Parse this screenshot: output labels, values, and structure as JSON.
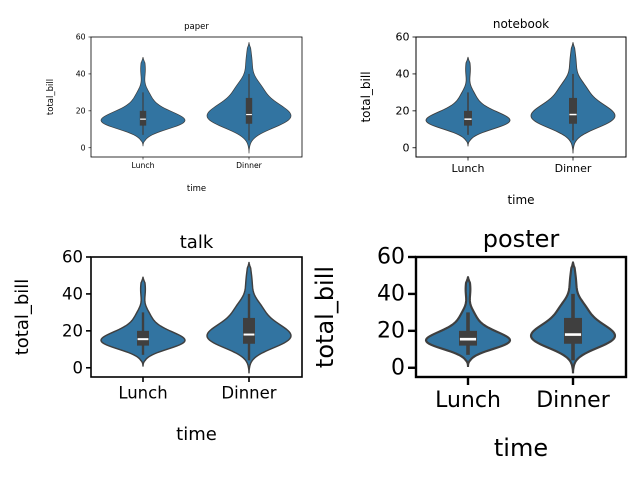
{
  "chart_data": [
    {
      "type": "violin",
      "title": "paper",
      "xlabel": "time",
      "ylabel": "total_bill",
      "categories": [
        "Lunch",
        "Dinner"
      ],
      "ylim": [
        -5,
        60
      ],
      "yticks": [
        0,
        20,
        40,
        60
      ],
      "color": "#3274a1",
      "violins": [
        {
          "category": "Lunch",
          "min": 1,
          "max": 49,
          "q1": 12,
          "median": 15.5,
          "q3": 20,
          "whisker_low": 7,
          "whisker_high": 30
        },
        {
          "category": "Dinner",
          "min": -3,
          "max": 57,
          "q1": 13,
          "median": 18,
          "q3": 27,
          "whisker_low": 4,
          "whisker_high": 40
        }
      ]
    },
    {
      "type": "violin",
      "title": "notebook",
      "xlabel": "time",
      "ylabel": "total_bill",
      "categories": [
        "Lunch",
        "Dinner"
      ],
      "ylim": [
        -5,
        60
      ],
      "yticks": [
        0,
        20,
        40,
        60
      ],
      "color": "#3274a1",
      "violins": [
        {
          "category": "Lunch",
          "min": 1,
          "max": 49,
          "q1": 12,
          "median": 15.5,
          "q3": 20,
          "whisker_low": 7,
          "whisker_high": 30
        },
        {
          "category": "Dinner",
          "min": -3,
          "max": 57,
          "q1": 13,
          "median": 18,
          "q3": 27,
          "whisker_low": 4,
          "whisker_high": 40
        }
      ]
    },
    {
      "type": "violin",
      "title": "talk",
      "xlabel": "time",
      "ylabel": "total_bill",
      "categories": [
        "Lunch",
        "Dinner"
      ],
      "ylim": [
        -5,
        60
      ],
      "yticks": [
        0,
        20,
        40,
        60
      ],
      "color": "#3274a1",
      "violins": [
        {
          "category": "Lunch",
          "min": 1,
          "max": 49,
          "q1": 12,
          "median": 15.5,
          "q3": 20,
          "whisker_low": 7,
          "whisker_high": 30
        },
        {
          "category": "Dinner",
          "min": -3,
          "max": 57,
          "q1": 13,
          "median": 18,
          "q3": 27,
          "whisker_low": 4,
          "whisker_high": 40
        }
      ]
    },
    {
      "type": "violin",
      "title": "poster",
      "xlabel": "time",
      "ylabel": "total_bill",
      "categories": [
        "Lunch",
        "Dinner"
      ],
      "ylim": [
        -5,
        60
      ],
      "yticks": [
        0,
        20,
        40,
        60
      ],
      "color": "#3274a1",
      "violins": [
        {
          "category": "Lunch",
          "min": 1,
          "max": 49,
          "q1": 12,
          "median": 15.5,
          "q3": 20,
          "whisker_low": 7,
          "whisker_high": 30
        },
        {
          "category": "Dinner",
          "min": -3,
          "max": 57,
          "q1": 13,
          "median": 18,
          "q3": 27,
          "whisker_low": 4,
          "whisker_high": 40
        }
      ]
    }
  ]
}
